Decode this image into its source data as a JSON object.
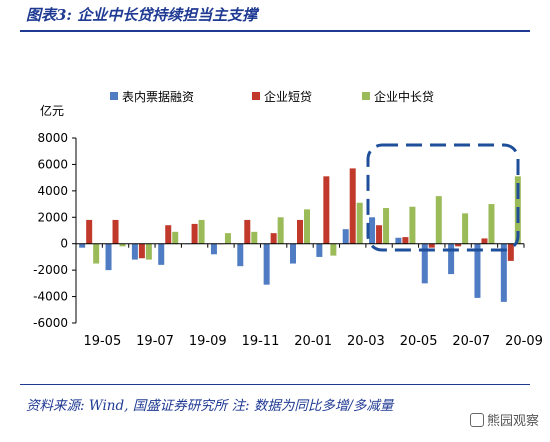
{
  "header": {
    "title": "图表3: 企业中长贷持续担当主支撑"
  },
  "footer": {
    "source": "资料来源: Wind, 国盛证券研究所  注: 数据为同比多增/多减量"
  },
  "watermark": {
    "text": "熊园观察"
  },
  "colors": {
    "series1": "#4f7cc2",
    "series2": "#c0392b",
    "series3": "#9bbb59",
    "frame": "#1f3a93",
    "highlight": "#1f4e9a"
  },
  "chart_data": {
    "type": "bar",
    "unit_label": "亿元",
    "ylim": [
      -6000,
      8000
    ],
    "yticks": [
      8000,
      6000,
      4000,
      2000,
      0,
      -2000,
      -4000,
      -6000
    ],
    "categories": [
      "19-05",
      "19-06",
      "19-07",
      "19-08",
      "19-09",
      "19-10",
      "19-11",
      "19-12",
      "20-01",
      "20-02",
      "20-03",
      "20-04",
      "20-05",
      "20-06",
      "20-07",
      "20-08",
      "20-09"
    ],
    "xtick_labels": [
      "19-05",
      "19-07",
      "19-09",
      "19-11",
      "20-01",
      "20-03",
      "20-05",
      "20-07",
      "20-09"
    ],
    "legend_position": "top",
    "grid": false,
    "series": [
      {
        "name": "表内票据融资",
        "values": [
          -300,
          -2000,
          -1200,
          -1600,
          0,
          -800,
          -1700,
          -3100,
          -1500,
          -1000,
          1100,
          2000,
          450,
          -3000,
          -2300,
          -4100,
          -4400
        ]
      },
      {
        "name": "企业短贷",
        "values": [
          1800,
          1800,
          -1100,
          1400,
          1500,
          0,
          1800,
          800,
          1800,
          5100,
          5700,
          1400,
          500,
          -300,
          -200,
          400,
          -1300
        ]
      },
      {
        "name": "企业中长贷",
        "values": [
          -1500,
          -200,
          -1200,
          900,
          1800,
          800,
          900,
          2000,
          2600,
          -900,
          3100,
          2700,
          2800,
          3600,
          2300,
          3000,
          5100
        ]
      }
    ]
  }
}
